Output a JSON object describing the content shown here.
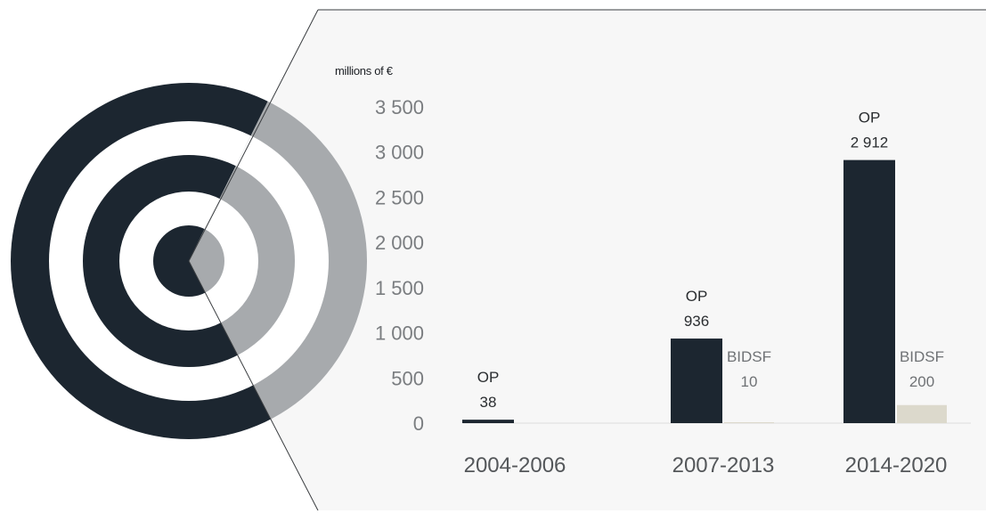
{
  "chart_data": {
    "type": "bar",
    "unit_label": "millions of €",
    "categories": [
      "2004-2006",
      "2007-2013",
      "2014-2020"
    ],
    "series": [
      {
        "name": "OP",
        "values": [
          38,
          936,
          2912
        ],
        "value_labels": [
          "38",
          "936",
          "2 912"
        ],
        "color": "#1c2630"
      },
      {
        "name": "BIDSF",
        "values": [
          null,
          10,
          200
        ],
        "value_labels": [
          "",
          "10",
          "200"
        ],
        "color": "#dcd9cc"
      }
    ],
    "ylim": [
      0,
      3500
    ],
    "y_ticks": [
      0,
      500,
      1000,
      1500,
      2000,
      2500,
      3000,
      3500
    ],
    "y_tick_labels": [
      "0",
      "500",
      "1 000",
      "1 500",
      "2 000",
      "2 500",
      "3 000",
      "3 500"
    ],
    "grid": false,
    "legend": "none",
    "colors": {
      "target_dark": "#1c2630",
      "target_grey": "#a7aaad",
      "panel_background": "#f7f7f7",
      "axis_text": "#7a7d80",
      "category_text": "#54575a"
    }
  }
}
